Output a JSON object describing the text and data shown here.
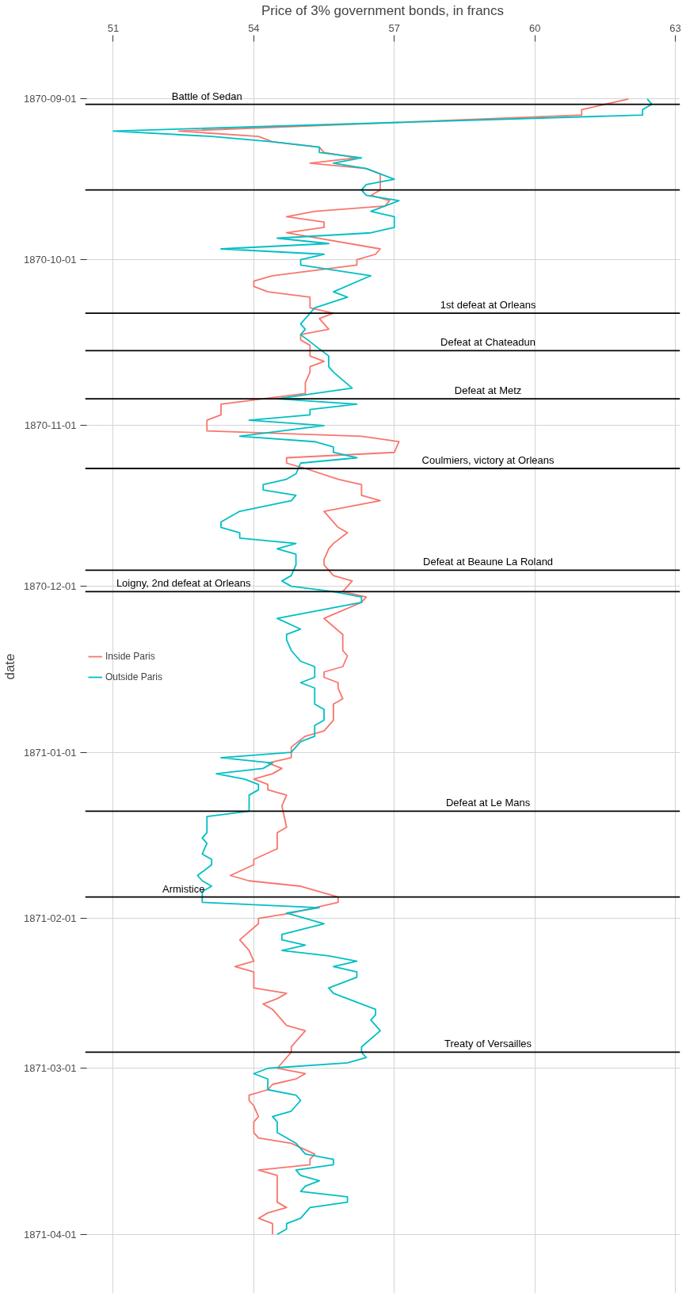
{
  "chart_data": {
    "type": "line",
    "orientation": "horizontal",
    "xlabel": "Price of 3% government bonds, in francs",
    "ylabel": "date",
    "xlim": [
      50.4,
      63.1
    ],
    "ylim": [
      "1871-04-12",
      "1870-08-21"
    ],
    "xticks": [
      51,
      54,
      57,
      60,
      63
    ],
    "yticks": [
      "1870-09-01",
      "1870-10-01",
      "1870-11-01",
      "1870-12-01",
      "1871-01-01",
      "1871-02-01",
      "1871-03-01",
      "1871-04-01"
    ],
    "grid": true,
    "legend": "left",
    "series": [
      {
        "name": "Inside Paris",
        "color": "#f8766d",
        "x": [
          "1870-09-01",
          "1870-09-03",
          "1870-09-04",
          "1870-09-07",
          "1870-09-08",
          "1870-09-09",
          "1870-09-10",
          "1870-09-11",
          "1870-09-12",
          "1870-09-13",
          "1870-09-14",
          "1870-09-15",
          "1870-09-16",
          "1870-09-18",
          "1870-09-19",
          "1870-09-20",
          "1870-09-21",
          "1870-09-22",
          "1870-09-23",
          "1870-09-24",
          "1870-09-25",
          "1870-09-26",
          "1870-09-29",
          "1870-09-30",
          "1870-10-01",
          "1870-10-02",
          "1870-10-04",
          "1870-10-05",
          "1870-10-06",
          "1870-10-07",
          "1870-10-08",
          "1870-10-10",
          "1870-10-11",
          "1870-10-12",
          "1870-10-14",
          "1870-10-15",
          "1870-10-16",
          "1870-10-17",
          "1870-10-19",
          "1870-10-20",
          "1870-10-21",
          "1870-10-22",
          "1870-10-24",
          "1870-10-26",
          "1870-10-27",
          "1870-10-28",
          "1870-10-30",
          "1870-10-31",
          "1870-11-02",
          "1870-11-03",
          "1870-11-04",
          "1870-11-06",
          "1870-11-07",
          "1870-11-08",
          "1870-11-09",
          "1870-11-11",
          "1870-11-12",
          "1870-11-14",
          "1870-11-15",
          "1870-11-17",
          "1870-11-19",
          "1870-11-20",
          "1870-11-21",
          "1870-11-23",
          "1870-11-24",
          "1870-11-26",
          "1870-11-27",
          "1870-11-29",
          "1870-11-30",
          "1870-12-02",
          "1870-12-03",
          "1870-12-04",
          "1870-12-07",
          "1870-12-10",
          "1870-12-13",
          "1870-12-14",
          "1870-12-16",
          "1870-12-17",
          "1870-12-18",
          "1870-12-19",
          "1870-12-20",
          "1870-12-22",
          "1870-12-23",
          "1870-12-26",
          "1870-12-28",
          "1870-12-29",
          "1870-12-31",
          "1871-01-02",
          "1871-01-03",
          "1871-01-04",
          "1871-01-05",
          "1871-01-06",
          "1871-01-07",
          "1871-01-08",
          "1871-01-09",
          "1871-01-11",
          "1871-01-15",
          "1871-01-16",
          "1871-01-17",
          "1871-01-19",
          "1871-01-21",
          "1871-01-22",
          "1871-01-24",
          "1871-01-25",
          "1871-01-26",
          "1871-01-28",
          "1871-01-29",
          "1871-01-31",
          "1871-02-01",
          "1871-02-02",
          "1871-02-05",
          "1871-02-07",
          "1871-02-09",
          "1871-02-10",
          "1871-02-11",
          "1871-02-14",
          "1871-02-15",
          "1871-02-16",
          "1871-02-17",
          "1871-02-18",
          "1871-02-19",
          "1871-02-21",
          "1871-02-22",
          "1871-02-23",
          "1871-02-25",
          "1871-02-26",
          "1871-02-28",
          "1871-03-01",
          "1871-03-02",
          "1871-03-03",
          "1871-03-04",
          "1871-03-05",
          "1871-03-06",
          "1871-03-07",
          "1871-03-08",
          "1871-03-10",
          "1871-03-11",
          "1871-03-13",
          "1871-03-14",
          "1871-03-15",
          "1871-03-17",
          "1871-03-18",
          "1871-03-19",
          "1871-03-20",
          "1871-03-21",
          "1871-03-26",
          "1871-03-27",
          "1871-03-28",
          "1871-03-29",
          "1871-03-30",
          "1871-04-01"
        ],
        "values": [
          62.0,
          61.0,
          61.0,
          52.4,
          54.1,
          54.4,
          55.4,
          55.5,
          56.2,
          55.2,
          56.4,
          56.7,
          56.7,
          56.7,
          56.5,
          56.9,
          56.8,
          55.3,
          54.7,
          55.5,
          55.5,
          54.7,
          56.7,
          56.6,
          56.2,
          56.2,
          54.4,
          54.0,
          54.0,
          54.3,
          55.2,
          55.2,
          55.7,
          55.4,
          55.6,
          55.0,
          55.0,
          55.2,
          55.2,
          55.5,
          55.2,
          55.2,
          55.1,
          55.1,
          54.2,
          53.3,
          53.3,
          53.0,
          53.0,
          56.3,
          57.1,
          57.0,
          54.7,
          54.7,
          55.1,
          55.8,
          56.3,
          56.3,
          56.7,
          55.5,
          55.7,
          55.8,
          56.0,
          55.7,
          55.6,
          55.5,
          55.5,
          55.7,
          56.1,
          55.9,
          56.4,
          56.3,
          55.5,
          55.9,
          55.9,
          56.0,
          55.9,
          55.5,
          55.5,
          55.8,
          55.8,
          55.9,
          55.7,
          55.7,
          55.5,
          55.1,
          54.8,
          54.8,
          54.3,
          54.6,
          54.4,
          54.0,
          54.3,
          54.3,
          54.7,
          54.6,
          54.7,
          54.5,
          54.5,
          54.5,
          54.0,
          54.0,
          53.5,
          53.9,
          55.0,
          55.8,
          55.8,
          54.8,
          54.1,
          54.1,
          53.7,
          53.9,
          54.0,
          53.6,
          54.0,
          54.0,
          54.7,
          54.5,
          54.2,
          54.4,
          54.5,
          54.7,
          55.1,
          55.0,
          54.8,
          54.8,
          54.6,
          54.5,
          55.1,
          54.9,
          54.4,
          54.3,
          53.9,
          53.9,
          54.0,
          54.1,
          54.0,
          54.0,
          54.1,
          54.8,
          55.3,
          55.2,
          55.2,
          54.1,
          54.5,
          54.5,
          54.7,
          54.3,
          54.1,
          54.4,
          54.4
        ]
      },
      {
        "name": "Outside Paris",
        "color": "#00bfc4",
        "x": [
          "1870-09-01",
          "1870-09-02",
          "1870-09-03",
          "1870-09-04",
          "1870-09-07",
          "1870-09-08",
          "1870-09-09",
          "1870-09-10",
          "1870-09-11",
          "1870-09-12",
          "1870-09-13",
          "1870-09-14",
          "1870-09-15",
          "1870-09-16",
          "1870-09-17",
          "1870-09-18",
          "1870-09-19",
          "1870-09-20",
          "1870-09-22",
          "1870-09-23",
          "1870-09-25",
          "1870-09-26",
          "1870-09-27",
          "1870-09-28",
          "1870-09-29",
          "1870-09-30",
          "1870-10-01",
          "1870-10-02",
          "1870-10-04",
          "1870-10-07",
          "1870-10-08",
          "1870-10-10",
          "1870-10-11",
          "1870-10-13",
          "1870-10-14",
          "1870-10-15",
          "1870-10-17",
          "1870-10-19",
          "1870-10-21",
          "1870-10-22",
          "1870-10-25",
          "1870-10-27",
          "1870-10-28",
          "1870-10-29",
          "1870-10-30",
          "1870-10-31",
          "1870-11-01",
          "1870-11-03",
          "1870-11-04",
          "1870-11-05",
          "1870-11-06",
          "1870-11-07",
          "1870-11-08",
          "1870-11-10",
          "1870-11-11",
          "1870-11-12",
          "1870-11-13",
          "1870-11-14",
          "1870-11-15",
          "1870-11-17",
          "1870-11-19",
          "1870-11-20",
          "1870-11-21",
          "1870-11-22",
          "1870-11-23",
          "1870-11-24",
          "1870-11-25",
          "1870-11-27",
          "1870-11-29",
          "1870-11-30",
          "1870-12-01",
          "1870-12-02",
          "1870-12-03",
          "1870-12-04",
          "1870-12-07",
          "1870-12-09",
          "1870-12-10",
          "1870-12-11",
          "1870-12-13",
          "1870-12-15",
          "1870-12-16",
          "1870-12-18",
          "1870-12-19",
          "1870-12-20",
          "1870-12-23",
          "1870-12-24",
          "1870-12-26",
          "1870-12-27",
          "1870-12-29",
          "1870-12-30",
          "1871-01-01",
          "1871-01-02",
          "1871-01-03",
          "1871-01-04",
          "1871-01-05",
          "1871-01-06",
          "1871-01-07",
          "1871-01-08",
          "1871-01-09",
          "1871-01-11",
          "1871-01-12",
          "1871-01-13",
          "1871-01-16",
          "1871-01-17",
          "1871-01-18",
          "1871-01-20",
          "1871-01-21",
          "1871-01-22",
          "1871-01-24",
          "1871-01-25",
          "1871-01-26",
          "1871-01-27",
          "1871-01-29",
          "1871-01-30",
          "1871-01-31",
          "1871-02-02",
          "1871-02-04",
          "1871-02-05",
          "1871-02-06",
          "1871-02-07",
          "1871-02-08",
          "1871-02-09",
          "1871-02-10",
          "1871-02-11",
          "1871-02-12",
          "1871-02-14",
          "1871-02-15",
          "1871-02-17",
          "1871-02-18",
          "1871-02-19",
          "1871-02-20",
          "1871-02-22",
          "1871-02-25",
          "1871-02-26",
          "1871-02-27",
          "1871-02-28",
          "1871-03-01",
          "1871-03-02",
          "1871-03-03",
          "1871-03-05",
          "1871-03-06",
          "1871-03-07",
          "1871-03-09",
          "1871-03-10",
          "1871-03-11",
          "1871-03-13",
          "1871-03-15",
          "1871-03-17",
          "1871-03-18",
          "1871-03-19",
          "1871-03-20",
          "1871-03-21",
          "1871-03-22",
          "1871-03-23",
          "1871-03-24",
          "1871-03-25",
          "1871-03-26",
          "1871-03-27",
          "1871-03-28",
          "1871-03-29",
          "1871-03-30",
          "1871-03-31",
          "1871-04-01"
        ],
        "values": [
          62.4,
          62.5,
          62.3,
          62.3,
          51.0,
          53.1,
          54.4,
          55.4,
          55.4,
          56.3,
          55.7,
          56.4,
          56.7,
          57.0,
          56.4,
          56.3,
          56.4,
          57.1,
          56.5,
          57.0,
          57.0,
          56.5,
          54.5,
          55.6,
          53.3,
          55.5,
          55.0,
          55.0,
          56.5,
          55.7,
          56.0,
          55.3,
          55.2,
          55.0,
          55.1,
          55.0,
          55.3,
          55.6,
          55.6,
          55.7,
          56.1,
          54.5,
          56.2,
          55.2,
          55.2,
          53.9,
          55.5,
          53.7,
          55.3,
          55.7,
          55.7,
          56.2,
          55.0,
          54.9,
          54.7,
          54.2,
          54.2,
          54.9,
          54.8,
          53.7,
          53.3,
          53.3,
          53.7,
          53.7,
          54.9,
          54.5,
          54.9,
          54.9,
          54.8,
          54.6,
          54.8,
          55.7,
          56.3,
          56.3,
          54.5,
          55.0,
          54.7,
          54.7,
          54.8,
          55.0,
          55.3,
          55.3,
          55.0,
          55.3,
          55.3,
          55.5,
          55.5,
          55.3,
          55.3,
          55.0,
          54.8,
          53.3,
          54.4,
          54.2,
          53.2,
          53.8,
          54.1,
          54.1,
          53.9,
          53.9,
          53.9,
          53.0,
          53.0,
          52.9,
          53.0,
          52.9,
          53.1,
          53.1,
          52.8,
          52.9,
          53.1,
          52.9,
          52.9,
          55.4,
          54.7,
          55.5,
          54.6,
          54.6,
          55.1,
          54.6,
          55.6,
          56.2,
          55.7,
          56.2,
          56.2,
          55.6,
          55.7,
          56.3,
          56.6,
          56.6,
          56.5,
          56.7,
          56.3,
          56.3,
          56.4,
          56.0,
          54.3,
          54.0,
          54.3,
          54.3,
          54.9,
          55.0,
          54.8,
          54.4,
          54.5,
          54.5,
          54.9,
          55.1,
          55.7,
          55.7,
          54.9,
          55.0,
          55.4,
          55.1,
          55.0,
          56.0,
          56.0,
          55.2,
          55.1,
          55.0,
          54.7,
          54.7,
          54.5
        ]
      }
    ],
    "ref_lines": [
      {
        "axis": "y",
        "value": "1870-09-02",
        "color": "#000000"
      },
      {
        "axis": "y",
        "value": "1870-09-18",
        "color": "#000000"
      },
      {
        "axis": "y",
        "value": "1870-10-11",
        "color": "#000000"
      },
      {
        "axis": "y",
        "value": "1870-10-18",
        "color": "#000000"
      },
      {
        "axis": "y",
        "value": "1870-10-27",
        "color": "#000000"
      },
      {
        "axis": "y",
        "value": "1870-11-09",
        "color": "#000000"
      },
      {
        "axis": "y",
        "value": "1870-11-28",
        "color": "#000000"
      },
      {
        "axis": "y",
        "value": "1870-12-02",
        "color": "#000000"
      },
      {
        "axis": "y",
        "value": "1871-01-12",
        "color": "#000000"
      },
      {
        "axis": "y",
        "value": "1871-01-28",
        "color": "#000000"
      },
      {
        "axis": "y",
        "value": "1871-02-26",
        "color": "#000000"
      }
    ],
    "annotations": [
      {
        "text": "Battle of Sedan",
        "x": 53.0,
        "y": "1870-09-02"
      },
      {
        "text": "1st defeat at Orleans",
        "x": 59.0,
        "y": "1870-10-11"
      },
      {
        "text": "Defeat at Chateadun",
        "x": 59.0,
        "y": "1870-10-18"
      },
      {
        "text": "Defeat at Metz",
        "x": 59.0,
        "y": "1870-10-27"
      },
      {
        "text": "Coulmiers, victory at Orleans",
        "x": 59.0,
        "y": "1870-11-09"
      },
      {
        "text": "Defeat at Beaune La Roland",
        "x": 59.0,
        "y": "1870-11-28"
      },
      {
        "text": "Loigny, 2nd defeat at Orleans",
        "x": 52.5,
        "y": "1870-12-02"
      },
      {
        "text": "Defeat at Le Mans",
        "x": 59.0,
        "y": "1871-01-12"
      },
      {
        "text": "Armistice",
        "x": 52.5,
        "y": "1871-01-28"
      },
      {
        "text": "Treaty of Versailles",
        "x": 59.0,
        "y": "1871-02-26"
      }
    ]
  }
}
